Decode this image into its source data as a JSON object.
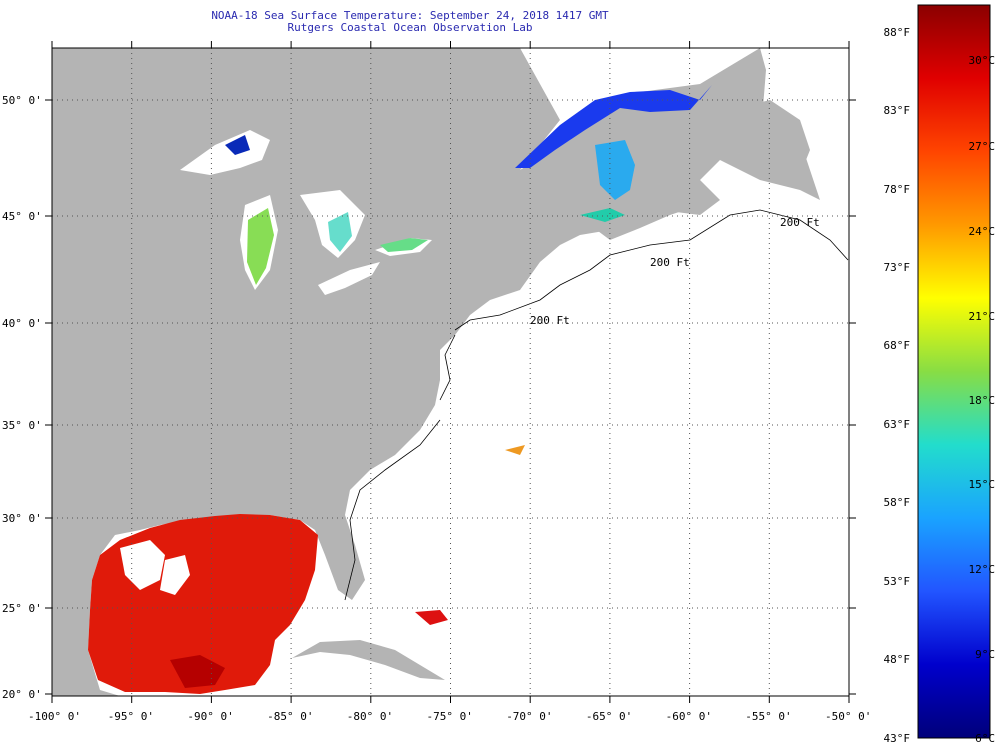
{
  "header": {
    "title": "NOAA-18 Sea Surface Temperature:  September 24, 2018 1417 GMT",
    "subtitle": "Rutgers Coastal Ocean Observation Lab"
  },
  "map": {
    "lon_labels": [
      "-100° 0'",
      "-95° 0'",
      "-90° 0'",
      "-85° 0'",
      "-80° 0'",
      "-75° 0'",
      "-70° 0'",
      "-65° 0'",
      "-60° 0'",
      "-55° 0'",
      "-50° 0'"
    ],
    "lat_labels": [
      "50° 0'",
      "45° 0'",
      "40° 0'",
      "35° 0'",
      "30° 0'",
      "25° 0'",
      "20° 0'"
    ],
    "isobaths": [
      "200 Ft",
      "200 Ft",
      "200 Ft"
    ],
    "land_color": "#b4b4b4",
    "no_data_color": "#ffffff"
  },
  "colorbar": {
    "f_labels": [
      "88°F",
      "83°F",
      "78°F",
      "73°F",
      "68°F",
      "63°F",
      "58°F",
      "53°F",
      "48°F",
      "43°F"
    ],
    "c_labels": [
      "30°C",
      "27°C",
      "24°C",
      "21°C",
      "18°C",
      "15°C",
      "12°C",
      "9°C",
      "6°C"
    ],
    "colors": [
      "#8b0000",
      "#e00000",
      "#ff4500",
      "#ff9900",
      "#ffff00",
      "#88dd44",
      "#22ddcc",
      "#1aa3ff",
      "#2255ff",
      "#0000cc",
      "#00007a"
    ]
  }
}
